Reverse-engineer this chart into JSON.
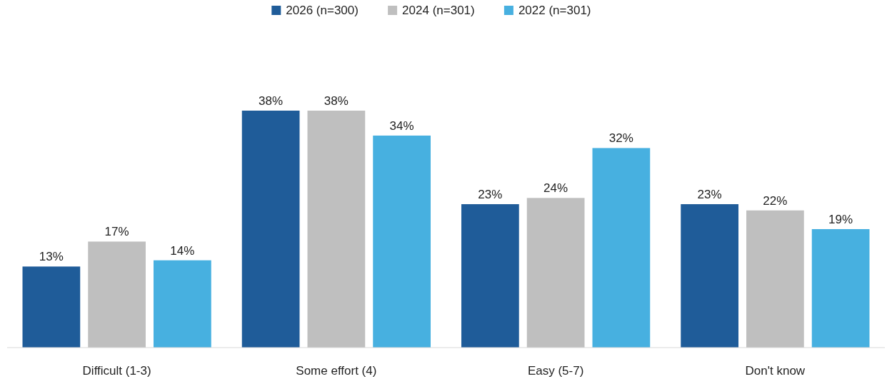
{
  "chart_data": {
    "type": "bar",
    "categories": [
      "Difficult (1-3)",
      "Some effort (4)",
      "Easy (5-7)",
      "Don't know"
    ],
    "series": [
      {
        "name": "2026 (n=300)",
        "color": "#1f5c99",
        "values": [
          13,
          38,
          23,
          23
        ],
        "value_labels": [
          "13%",
          "38%",
          "23%",
          "23%"
        ]
      },
      {
        "name": "2024 (n=301)",
        "color": "#bfbfbf",
        "values": [
          17,
          38,
          24,
          22
        ],
        "value_labels": [
          "17%",
          "38%",
          "24%",
          "22%"
        ]
      },
      {
        "name": "2022 (n=301)",
        "color": "#47b0e0",
        "values": [
          14,
          34,
          32,
          19
        ],
        "value_labels": [
          "14%",
          "34%",
          "32%",
          "19%"
        ]
      }
    ],
    "legend": "top"
  }
}
